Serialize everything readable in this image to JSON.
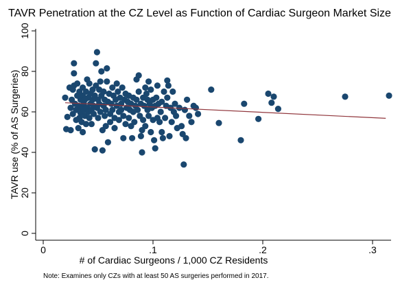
{
  "chart_data": {
    "type": "scatter",
    "title": "TAVR Penetration at the CZ Level as Function of Cardiac Surgeon Market Size",
    "xlabel": "# of Cardiac Surgeons / 1,000 CZ Residents",
    "ylabel": "TAVR use (% of AS Surgeries)",
    "note": "Note: Examines only CZs with at least 50 AS surgeries performed in 2017.",
    "xlim": [
      0,
      0.32
    ],
    "ylim": [
      0,
      100
    ],
    "xticks": [
      {
        "value": 0,
        "label": "0"
      },
      {
        "value": 0.1,
        "label": ".1"
      },
      {
        "value": 0.2,
        "label": ".2"
      },
      {
        "value": 0.3,
        "label": ".3"
      }
    ],
    "yticks": [
      {
        "value": 0,
        "label": "0"
      },
      {
        "value": 20,
        "label": "20"
      },
      {
        "value": 40,
        "label": "40"
      },
      {
        "value": 60,
        "label": "60"
      },
      {
        "value": 80,
        "label": "80"
      },
      {
        "value": 100,
        "label": "100"
      }
    ],
    "grid": false,
    "legend": "none",
    "colors": {
      "points": "#1a476f",
      "fit_line": "#90353b"
    },
    "fit_line": {
      "x": [
        0.02,
        0.312
      ],
      "y": [
        64.5,
        56.8
      ]
    },
    "points": [
      [
        0.02,
        67
      ],
      [
        0.021,
        51.5
      ],
      [
        0.022,
        57.5
      ],
      [
        0.024,
        72
      ],
      [
        0.025,
        51
      ],
      [
        0.025,
        62
      ],
      [
        0.026,
        66
      ],
      [
        0.027,
        59
      ],
      [
        0.027,
        71
      ],
      [
        0.028,
        73
      ],
      [
        0.028,
        84
      ],
      [
        0.028,
        79
      ],
      [
        0.029,
        64
      ],
      [
        0.03,
        61
      ],
      [
        0.03,
        56
      ],
      [
        0.031,
        68
      ],
      [
        0.031,
        74
      ],
      [
        0.032,
        63
      ],
      [
        0.032,
        52
      ],
      [
        0.033,
        57
      ],
      [
        0.033,
        70
      ],
      [
        0.034,
        66
      ],
      [
        0.034,
        59.5
      ],
      [
        0.035,
        62
      ],
      [
        0.035,
        55
      ],
      [
        0.036,
        72
      ],
      [
        0.036,
        68
      ],
      [
        0.036,
        50
      ],
      [
        0.037,
        64
      ],
      [
        0.037,
        61
      ],
      [
        0.038,
        58
      ],
      [
        0.038,
        66
      ],
      [
        0.039,
        70
      ],
      [
        0.039,
        54
      ],
      [
        0.04,
        76
      ],
      [
        0.04,
        62
      ],
      [
        0.041,
        60
      ],
      [
        0.041,
        67
      ],
      [
        0.042,
        74
      ],
      [
        0.042,
        57
      ],
      [
        0.043,
        64
      ],
      [
        0.043,
        69
      ],
      [
        0.044,
        54
      ],
      [
        0.044,
        61
      ],
      [
        0.045,
        71
      ],
      [
        0.045,
        66
      ],
      [
        0.046,
        59
      ],
      [
        0.046,
        63
      ],
      [
        0.047,
        41.5
      ],
      [
        0.047,
        68
      ],
      [
        0.048,
        84
      ],
      [
        0.048,
        73
      ],
      [
        0.049,
        89.5
      ],
      [
        0.049,
        62
      ],
      [
        0.05,
        66
      ],
      [
        0.05,
        57
      ],
      [
        0.051,
        71
      ],
      [
        0.051,
        64
      ],
      [
        0.052,
        75
      ],
      [
        0.052,
        60
      ],
      [
        0.053,
        80
      ],
      [
        0.053,
        68
      ],
      [
        0.054,
        41
      ],
      [
        0.054,
        51
      ],
      [
        0.055,
        63
      ],
      [
        0.055,
        70
      ],
      [
        0.056,
        58
      ],
      [
        0.056,
        66
      ],
      [
        0.057,
        53
      ],
      [
        0.057,
        61
      ],
      [
        0.058,
        75
      ],
      [
        0.058,
        81.5
      ],
      [
        0.059,
        45
      ],
      [
        0.059,
        65
      ],
      [
        0.06,
        69
      ],
      [
        0.061,
        59
      ],
      [
        0.061,
        55
      ],
      [
        0.062,
        64
      ],
      [
        0.063,
        72
      ],
      [
        0.063,
        61
      ],
      [
        0.064,
        68
      ],
      [
        0.065,
        57
      ],
      [
        0.065,
        52
      ],
      [
        0.066,
        66
      ],
      [
        0.067,
        63
      ],
      [
        0.067,
        74
      ],
      [
        0.068,
        70
      ],
      [
        0.069,
        60
      ],
      [
        0.069,
        56
      ],
      [
        0.07,
        67
      ],
      [
        0.071,
        64
      ],
      [
        0.071,
        61
      ],
      [
        0.072,
        72
      ],
      [
        0.073,
        47
      ],
      [
        0.073,
        58
      ],
      [
        0.074,
        66
      ],
      [
        0.075,
        69
      ],
      [
        0.075,
        54
      ],
      [
        0.076,
        62
      ],
      [
        0.077,
        65
      ],
      [
        0.078,
        57
      ],
      [
        0.078,
        68
      ],
      [
        0.079,
        61
      ],
      [
        0.08,
        53
      ],
      [
        0.08,
        64
      ],
      [
        0.081,
        47
      ],
      [
        0.082,
        67
      ],
      [
        0.082,
        60
      ],
      [
        0.083,
        55
      ],
      [
        0.084,
        63
      ],
      [
        0.085,
        66
      ],
      [
        0.085,
        76
      ],
      [
        0.086,
        61
      ],
      [
        0.087,
        70
      ],
      [
        0.087,
        78
      ],
      [
        0.088,
        58
      ],
      [
        0.089,
        48
      ],
      [
        0.089,
        64
      ],
      [
        0.09,
        51
      ],
      [
        0.09,
        40
      ],
      [
        0.091,
        67
      ],
      [
        0.091,
        56
      ],
      [
        0.092,
        63
      ],
      [
        0.093,
        72
      ],
      [
        0.093,
        53
      ],
      [
        0.094,
        69
      ],
      [
        0.095,
        61
      ],
      [
        0.095,
        66
      ],
      [
        0.096,
        58
      ],
      [
        0.096,
        75
      ],
      [
        0.097,
        64
      ],
      [
        0.098,
        50
      ],
      [
        0.098,
        71
      ],
      [
        0.099,
        62
      ],
      [
        0.1,
        66
      ],
      [
        0.1,
        56
      ],
      [
        0.101,
        46
      ],
      [
        0.102,
        63
      ],
      [
        0.102,
        42
      ],
      [
        0.103,
        67
      ],
      [
        0.104,
        57
      ],
      [
        0.104,
        73
      ],
      [
        0.105,
        64
      ],
      [
        0.106,
        55
      ],
      [
        0.107,
        60
      ],
      [
        0.108,
        50
      ],
      [
        0.108,
        65
      ],
      [
        0.109,
        47
      ],
      [
        0.11,
        70
      ],
      [
        0.111,
        57
      ],
      [
        0.112,
        63
      ],
      [
        0.113,
        75.5
      ],
      [
        0.113,
        67
      ],
      [
        0.114,
        73
      ],
      [
        0.115,
        48
      ],
      [
        0.116,
        62
      ],
      [
        0.117,
        55
      ],
      [
        0.118,
        70
      ],
      [
        0.119,
        60
      ],
      [
        0.12,
        64
      ],
      [
        0.121,
        58
      ],
      [
        0.122,
        52
      ],
      [
        0.124,
        62
      ],
      [
        0.126,
        53
      ],
      [
        0.127,
        49
      ],
      [
        0.128,
        34
      ],
      [
        0.129,
        61
      ],
      [
        0.13,
        47
      ],
      [
        0.131,
        66
      ],
      [
        0.133,
        58
      ],
      [
        0.135,
        55
      ],
      [
        0.137,
        63
      ],
      [
        0.139,
        62
      ],
      [
        0.141,
        59
      ],
      [
        0.153,
        71
      ],
      [
        0.16,
        54.5
      ],
      [
        0.18,
        46
      ],
      [
        0.183,
        64
      ],
      [
        0.196,
        56.5
      ],
      [
        0.205,
        69
      ],
      [
        0.208,
        64.5
      ],
      [
        0.21,
        67.5
      ],
      [
        0.214,
        61.5
      ],
      [
        0.275,
        67.5
      ],
      [
        0.315,
        68
      ]
    ]
  }
}
